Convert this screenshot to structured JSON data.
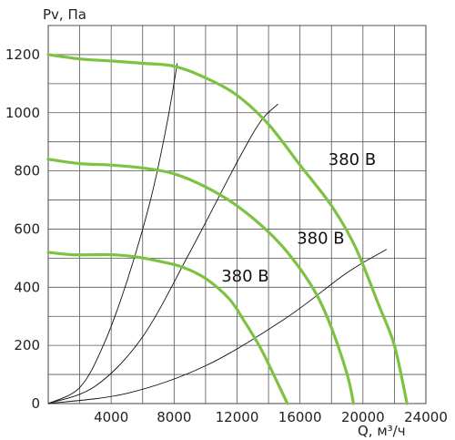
{
  "chart_data": {
    "type": "line",
    "title": "",
    "xlabel": "Q, м³/ч",
    "ylabel": "Pv, Па",
    "xlim": [
      0,
      24000
    ],
    "ylim": [
      0,
      1300
    ],
    "x_ticks": [
      4000,
      8000,
      12000,
      16000,
      20000,
      24000
    ],
    "y_ticks": [
      0,
      200,
      400,
      600,
      800,
      1000,
      1200
    ],
    "grid": true,
    "fan_color": "#7dc242",
    "system_color": "#111111",
    "fan_curves": [
      {
        "label": "380 В",
        "points": [
          [
            0,
            1200
          ],
          [
            2000,
            1185
          ],
          [
            4000,
            1178
          ],
          [
            6000,
            1170
          ],
          [
            8000,
            1160
          ],
          [
            10000,
            1120
          ],
          [
            12000,
            1060
          ],
          [
            14000,
            960
          ],
          [
            16000,
            820
          ],
          [
            18000,
            680
          ],
          [
            19500,
            540
          ],
          [
            21000,
            340
          ],
          [
            22000,
            200
          ],
          [
            22800,
            0
          ]
        ]
      },
      {
        "label": "380 В",
        "points": [
          [
            0,
            840
          ],
          [
            2000,
            825
          ],
          [
            4000,
            820
          ],
          [
            6000,
            810
          ],
          [
            8000,
            790
          ],
          [
            10000,
            745
          ],
          [
            12000,
            680
          ],
          [
            14000,
            590
          ],
          [
            15500,
            500
          ],
          [
            17000,
            380
          ],
          [
            18000,
            260
          ],
          [
            19000,
            100
          ],
          [
            19400,
            0
          ]
        ]
      },
      {
        "label": "380 В",
        "points": [
          [
            0,
            520
          ],
          [
            1500,
            512
          ],
          [
            3000,
            512
          ],
          [
            4000,
            512
          ],
          [
            5500,
            505
          ],
          [
            7000,
            490
          ],
          [
            8500,
            470
          ],
          [
            10000,
            430
          ],
          [
            11500,
            360
          ],
          [
            12500,
            280
          ],
          [
            13500,
            190
          ],
          [
            14500,
            80
          ],
          [
            15200,
            0
          ]
        ]
      }
    ],
    "system_curves": [
      {
        "points": [
          [
            0,
            0
          ],
          [
            2000,
            55
          ],
          [
            3500,
            200
          ],
          [
            5000,
            420
          ],
          [
            6500,
            700
          ],
          [
            7500,
            950
          ],
          [
            8200,
            1170
          ]
        ]
      },
      {
        "points": [
          [
            0,
            0
          ],
          [
            3000,
            60
          ],
          [
            6000,
            230
          ],
          [
            9000,
            520
          ],
          [
            12000,
            830
          ],
          [
            13500,
            970
          ],
          [
            14600,
            1030
          ]
        ]
      },
      {
        "points": [
          [
            0,
            0
          ],
          [
            5000,
            35
          ],
          [
            10000,
            130
          ],
          [
            15000,
            290
          ],
          [
            19000,
            450
          ],
          [
            21500,
            530
          ]
        ]
      }
    ]
  }
}
